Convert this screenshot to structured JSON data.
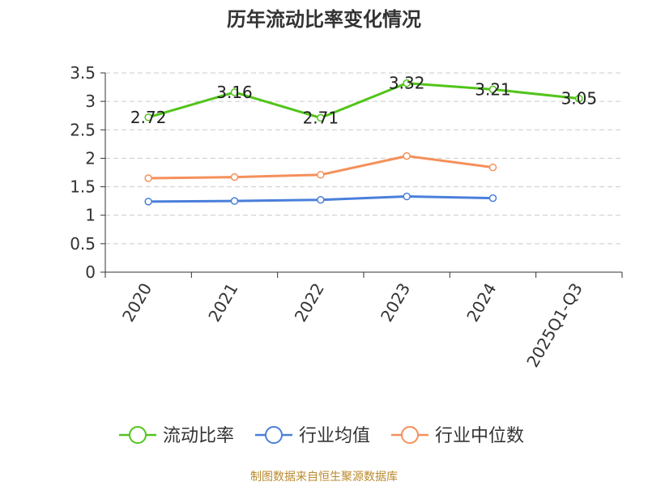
{
  "chart_data": {
    "type": "line",
    "title": "历年流动比率变化情况",
    "categories": [
      "2020",
      "2021",
      "2022",
      "2023",
      "2024",
      "2025Q1-Q3"
    ],
    "ylim": [
      0,
      3.5
    ],
    "yticks": [
      0,
      0.5,
      1,
      1.5,
      2,
      2.5,
      3,
      3.5
    ],
    "ytick_labels": [
      "0",
      "0.5",
      "1",
      "1.5",
      "2",
      "2.5",
      "3",
      "3.5"
    ],
    "grid": true,
    "legend_position": "bottom",
    "series": [
      {
        "name": "流动比率",
        "color": "#52c41a",
        "marker": "circle",
        "show_labels": true,
        "values": [
          2.72,
          3.16,
          2.71,
          3.32,
          3.21,
          3.05
        ],
        "labels": [
          "2.72",
          "3.16",
          "2.71",
          "3.32",
          "3.21",
          "3.05"
        ]
      },
      {
        "name": "行业均值",
        "color": "#4a7fdb",
        "marker": "circle",
        "show_labels": false,
        "values": [
          1.24,
          1.25,
          1.27,
          1.33,
          1.3,
          null
        ]
      },
      {
        "name": "行业中位数",
        "color": "#f5905a",
        "marker": "circle",
        "show_labels": false,
        "values": [
          1.65,
          1.67,
          1.71,
          2.04,
          1.84,
          null
        ]
      }
    ]
  },
  "footer": "制图数据来自恒生聚源数据库"
}
